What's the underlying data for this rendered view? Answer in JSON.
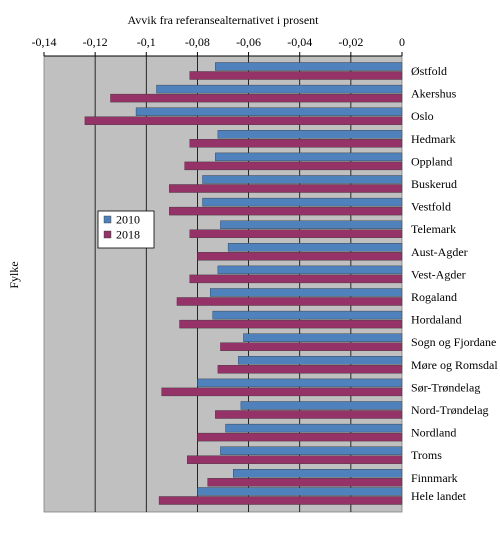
{
  "chart_data": {
    "type": "bar",
    "orientation": "horizontal",
    "title": "",
    "xlabel": "Avvik fra referansealternativet i prosent",
    "ylabel": "Fylke",
    "xlim": [
      -0.14,
      0
    ],
    "x_ticks": [
      -0.14,
      -0.12,
      -0.1,
      -0.08,
      -0.06,
      -0.04,
      -0.02,
      0
    ],
    "x_tick_labels": [
      "-0,14",
      "-0,12",
      "-0,1",
      "-0,08",
      "-0,06",
      "-0,04",
      "-0,02",
      "0"
    ],
    "x_axis_position": "top",
    "grid": true,
    "legend_position": "left",
    "categories": [
      "Østfold",
      "Akershus",
      "Oslo",
      "Hedmark",
      "Oppland",
      "Buskerud",
      "Vestfold",
      "Telemark",
      "Aust-Agder",
      "Vest-Agder",
      "Rogaland",
      "Hordaland",
      "Sogn og Fjordane",
      "Møre og Romsdal",
      "Sør-Trøndelag",
      "Nord-Trøndelag",
      "Nordland",
      "Troms",
      "Finnmark",
      "Hele landet"
    ],
    "series": [
      {
        "name": "2010",
        "color": "#4f81bd",
        "values": [
          -0.073,
          -0.096,
          -0.104,
          -0.072,
          -0.073,
          -0.078,
          -0.078,
          -0.071,
          -0.068,
          -0.072,
          -0.075,
          -0.074,
          -0.062,
          -0.064,
          -0.08,
          -0.063,
          -0.069,
          -0.071,
          -0.066,
          -0.08
        ]
      },
      {
        "name": "2018",
        "color": "#953268",
        "values": [
          -0.083,
          -0.114,
          -0.124,
          -0.083,
          -0.085,
          -0.091,
          -0.091,
          -0.083,
          -0.08,
          -0.083,
          -0.088,
          -0.087,
          -0.071,
          -0.072,
          -0.094,
          -0.073,
          -0.08,
          -0.084,
          -0.076,
          -0.095
        ]
      }
    ]
  }
}
